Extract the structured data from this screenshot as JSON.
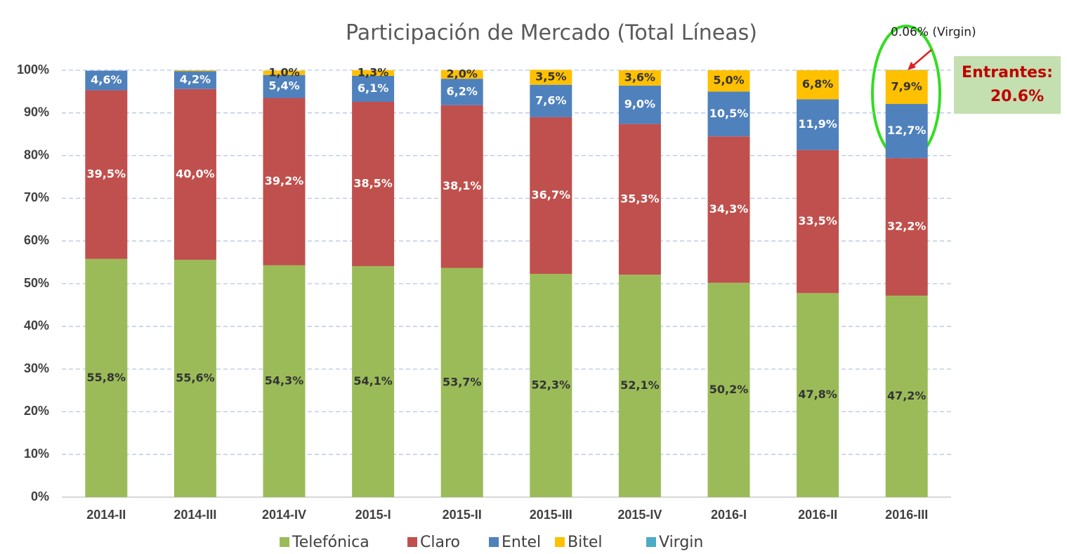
{
  "chart_data": {
    "type": "stacked-bar",
    "title": "Participación de Mercado (Total Líneas)",
    "categories": [
      "2014-II",
      "2014-III",
      "2014-IV",
      "2015-I",
      "2015-II",
      "2015-III",
      "2015-IV",
      "2016-I",
      "2016-II",
      "2016-III"
    ],
    "series": [
      {
        "name": "Telefónica",
        "color": "#9bbb59",
        "label_color": "#333333",
        "values": [
          55.8,
          55.6,
          54.3,
          54.1,
          53.7,
          52.3,
          52.1,
          50.2,
          47.8,
          47.2
        ],
        "value_labels": [
          "55,8%",
          "55,6%",
          "54,3%",
          "54,1%",
          "53,7%",
          "52,3%",
          "52,1%",
          "50,2%",
          "47,8%",
          "47,2%"
        ]
      },
      {
        "name": "Claro",
        "color": "#c0504d",
        "label_color": "#ffffff",
        "values": [
          39.5,
          40.0,
          39.2,
          38.5,
          38.1,
          36.7,
          35.3,
          34.3,
          33.5,
          32.2
        ],
        "value_labels": [
          "39,5%",
          "40,0%",
          "39,2%",
          "38,5%",
          "38,1%",
          "36,7%",
          "35,3%",
          "34,3%",
          "33,5%",
          "32,2%"
        ]
      },
      {
        "name": "Entel",
        "color": "#4f81bd",
        "label_color": "#ffffff",
        "values": [
          4.6,
          4.2,
          5.4,
          6.1,
          6.2,
          7.6,
          9.0,
          10.5,
          11.9,
          12.7
        ],
        "value_labels": [
          "4,6%",
          "4,2%",
          "5,4%",
          "6,1%",
          "6,2%",
          "7,6%",
          "9,0%",
          "10,5%",
          "11,9%",
          "12,7%"
        ]
      },
      {
        "name": "Bitel",
        "color": "#ffc000",
        "label_color": "#333333",
        "values": [
          null,
          0.2,
          1.0,
          1.3,
          2.0,
          3.5,
          3.6,
          5.0,
          6.8,
          7.9
        ],
        "value_labels": [
          null,
          null,
          "1,0%",
          "1,3%",
          "2,0%",
          "3,5%",
          "3,6%",
          "5,0%",
          "6,8%",
          "7,9%"
        ]
      },
      {
        "name": "Virgin",
        "color": "#4bacc6",
        "label_color": "#333333",
        "values": [
          null,
          null,
          null,
          null,
          null,
          null,
          null,
          null,
          null,
          0.06
        ]
      }
    ],
    "ylim": [
      0,
      100
    ],
    "yticks": [
      {
        "value": 0,
        "label": "0%"
      },
      {
        "value": 10,
        "label": "10%"
      },
      {
        "value": 20,
        "label": "20%"
      },
      {
        "value": 30,
        "label": "30%"
      },
      {
        "value": 40,
        "label": "40%"
      },
      {
        "value": 50,
        "label": "50%"
      },
      {
        "value": 60,
        "label": "60%"
      },
      {
        "value": 70,
        "label": "70%"
      },
      {
        "value": 80,
        "label": "80%"
      },
      {
        "value": 90,
        "label": "90%"
      },
      {
        "value": 100,
        "label": "100%"
      }
    ],
    "grid": true,
    "legend": "bottom",
    "annotation": "0.06% (Virgin)",
    "callout": [
      "Entrantes:",
      "20.6%"
    ]
  }
}
